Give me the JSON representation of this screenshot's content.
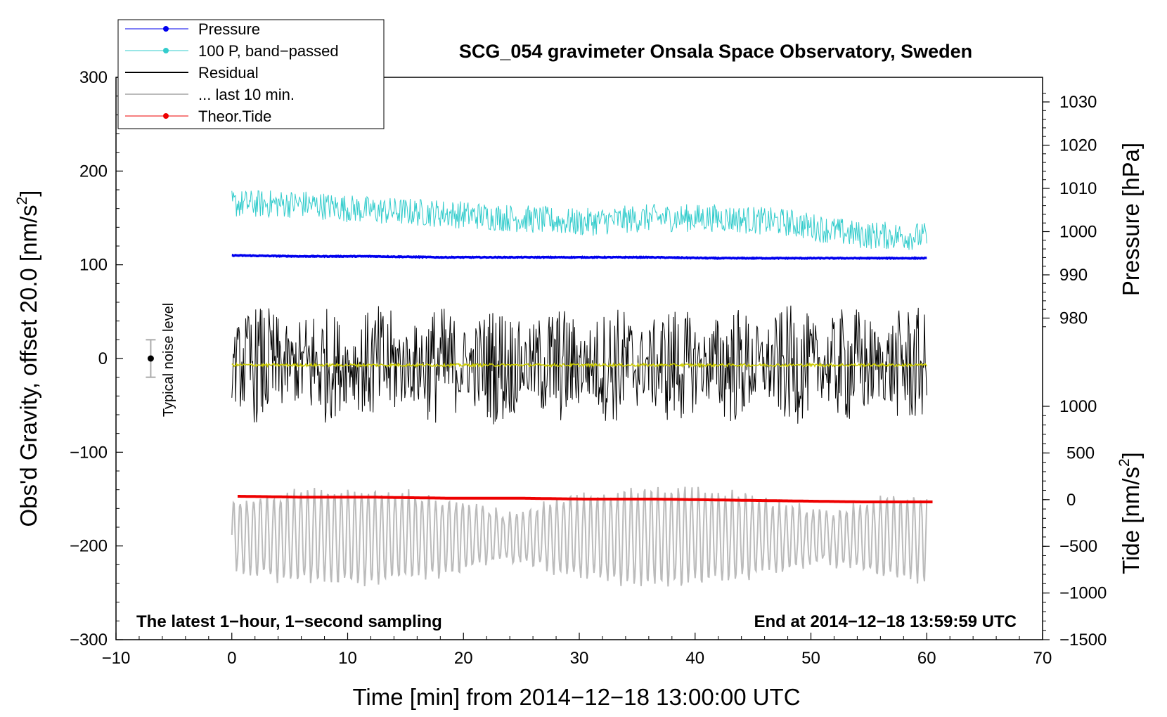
{
  "chart_data": {
    "type": "line",
    "title": "SCG_054 gravimeter Onsala Space Observatory, Sweden",
    "xlabel": "Time [min] from 2014−12−18 13:00:00 UTC",
    "ylabel_main": "Obs'd Gravity, offset 20.0 [nm/s",
    "ylabel_sup": "2",
    "ylabel_close": "]",
    "ylabel_pressure": "Pressure [hPa]",
    "ylabel_tide_main": "Tide [nm/s",
    "ylabel_tide_sup": "2",
    "ylabel_tide_close": "]",
    "xlim": [
      -10,
      70
    ],
    "ylim": [
      -300,
      300
    ],
    "x_ticks": [
      "−10",
      "0",
      "10",
      "20",
      "30",
      "40",
      "50",
      "60",
      "70"
    ],
    "y_ticks": [
      "300",
      "200",
      "100",
      "0",
      "−100",
      "−200",
      "−300"
    ],
    "pressure_ticks": [
      "1030",
      "1020",
      "1010",
      "1000",
      "990",
      "980"
    ],
    "tide_ticks": [
      "1000",
      "500",
      "0",
      "−500",
      "−1000",
      "−1500"
    ],
    "noise_label": "Typical noise level",
    "annotation_left": "The latest 1−hour, 1−second sampling",
    "annotation_right": "End at 2014−12−18 13:59:59 UTC",
    "legend": [
      {
        "label": "Pressure",
        "color": "#0000ee",
        "marker": true
      },
      {
        "label": "100 P, band−passed",
        "color": "#33cccc",
        "marker": true
      },
      {
        "label": "Residual",
        "color": "#000000",
        "marker": false
      },
      {
        "label": "... last 10 min.",
        "color": "#bbbbbb",
        "marker": false
      },
      {
        "label": "Theor.Tide",
        "color": "#ee0000",
        "marker": true
      }
    ],
    "series": [
      {
        "name": "Pressure",
        "color": "#0000ee",
        "x_range": [
          0,
          60
        ],
        "values_gravity_units": [
          110,
          109,
          109,
          108,
          108,
          108,
          108,
          107,
          107,
          107,
          107
        ]
      },
      {
        "name": "100 P, band-passed",
        "color": "#33cccc",
        "x_range": [
          0,
          60
        ],
        "mean_gravity_units": [
          165,
          165,
          158,
          155,
          150,
          145,
          150,
          150,
          145,
          132,
          130
        ],
        "amplitude": 15
      },
      {
        "name": "Residual",
        "color": "#000000",
        "x_range": [
          0,
          60
        ],
        "mean": -7,
        "amplitude": 40
      },
      {
        "name": "Residual mean",
        "color": "#cccc00",
        "x_range": [
          0,
          60
        ],
        "mean": -7
      },
      {
        "name": "... last 10 min.",
        "color": "#bbbbbb",
        "x_range": [
          0,
          60
        ],
        "mean": -190,
        "amplitude": 50
      },
      {
        "name": "Theor.Tide",
        "color": "#ee0000",
        "x_range": [
          0.5,
          60.5
        ],
        "values_gravity_units": [
          -147,
          -148,
          -148,
          -149,
          -149,
          -150,
          -150,
          -151,
          -152,
          -153,
          -153
        ]
      }
    ],
    "noise_bar": {
      "x": -7,
      "y": 0,
      "half_range": 20
    }
  }
}
